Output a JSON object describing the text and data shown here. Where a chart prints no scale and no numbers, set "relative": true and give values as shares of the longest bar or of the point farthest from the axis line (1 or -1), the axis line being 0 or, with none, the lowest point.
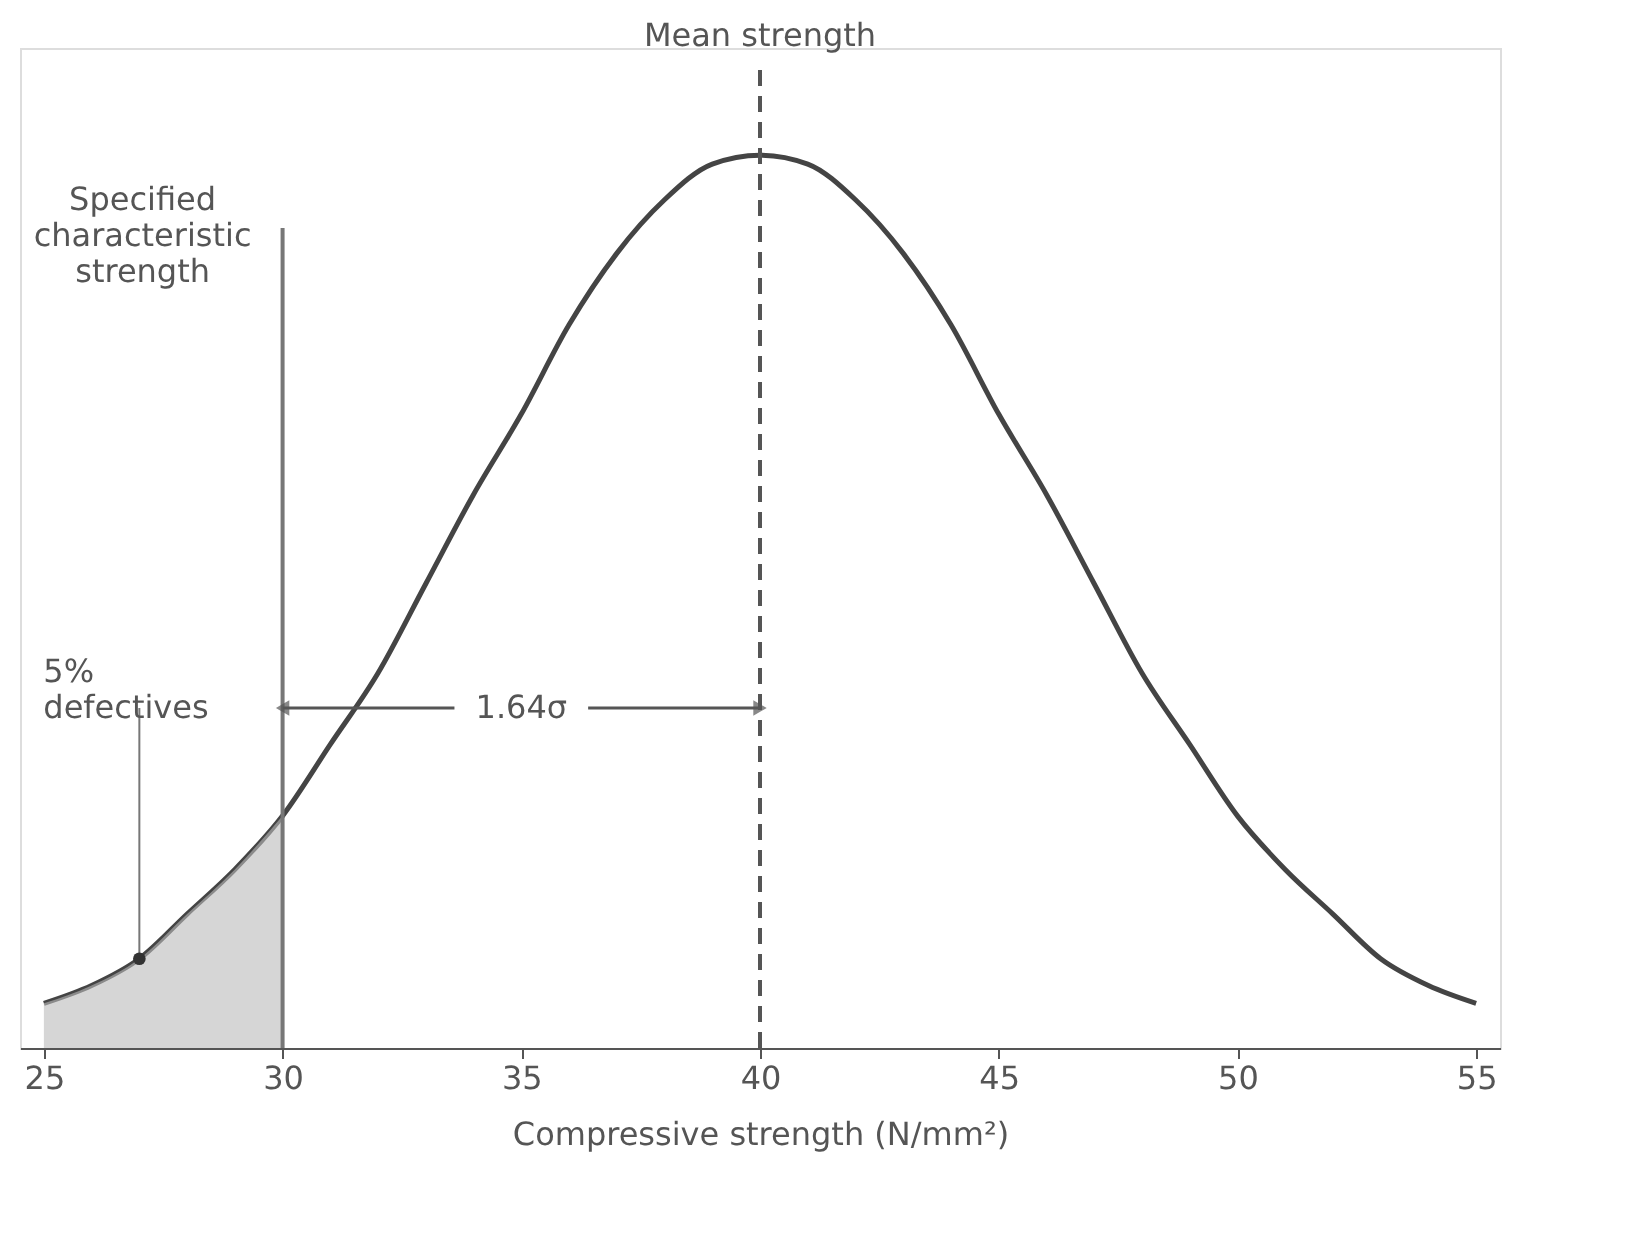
{
  "chart_data": {
    "type": "line",
    "relative": true,
    "x": [
      25,
      26,
      27,
      28,
      29,
      30,
      31,
      32,
      33,
      34,
      35,
      36,
      37,
      38,
      39,
      40,
      41,
      42,
      43,
      44,
      45,
      46,
      47,
      48,
      49,
      50,
      51,
      52,
      53,
      54,
      55
    ],
    "series": [
      {
        "color": "#444444",
        "values": [
          0.05,
          0.07,
          0.1,
          0.15,
          0.2,
          0.26,
          0.34,
          0.42,
          0.52,
          0.62,
          0.71,
          0.81,
          0.89,
          0.95,
          0.99,
          1.0,
          0.99,
          0.95,
          0.89,
          0.81,
          0.71,
          0.62,
          0.52,
          0.42,
          0.34,
          0.26,
          0.2,
          0.15,
          0.1,
          0.07,
          0.05
        ]
      },
      {
        "type": "area",
        "color": "#bbbbbb",
        "x": [
          25,
          26,
          27,
          28,
          29,
          30
        ],
        "values": [
          0.05,
          0.07,
          0.1,
          0.15,
          0.2,
          0.26
        ]
      }
    ],
    "xlabel": "Compressive strength (N/mm²)",
    "xlim": [
      24.5,
      55.5
    ],
    "xticks": [
      25,
      30,
      35,
      40,
      45,
      50,
      55
    ],
    "tick_labels": "x",
    "grid": false,
    "ref_lines": [
      {
        "axis": "x",
        "value": 40,
        "label": "Mean strength",
        "line_style": "dashed",
        "color": "#555555"
      },
      {
        "axis": "x",
        "value": 30,
        "label": "Specified characteristic strength",
        "line_style": "solid",
        "color": "#777777"
      }
    ],
    "annotations": [
      {
        "text": "5% defectives",
        "x": 27,
        "y": 0.1
      },
      "1.64σ"
    ]
  }
}
